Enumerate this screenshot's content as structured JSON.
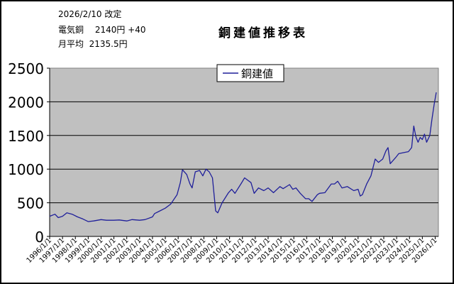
{
  "header": {
    "date_line": "2026/2/10 改定",
    "price_line": "電気銅　 2140円 +40",
    "avg_line": "月平均  2135.5円"
  },
  "chart_data": {
    "type": "line",
    "title": "銅建値推移表",
    "xlabel": "",
    "ylabel": "",
    "ylim": [
      0,
      2500
    ],
    "xlim": [
      "1996/1/1",
      "2026/4/1"
    ],
    "y_ticks": [
      "0",
      "500",
      "1000",
      "1500",
      "2000",
      "2500"
    ],
    "x_ticks": [
      "1996/1/1",
      "1997/1/1",
      "1998/1/1",
      "1999/1/1",
      "2000/1/1",
      "2001/1/1",
      "2002/1/1",
      "2003/1/1",
      "2004/1/1",
      "2005/1/1",
      "2006/1/1",
      "2007/1/1",
      "2008/1/1",
      "2009/1/1",
      "2010/1/1",
      "2011/1/1",
      "2012/1/1",
      "2013/1/1",
      "2014/1/1",
      "2015/1/1",
      "2016/1/1",
      "2017/1/1",
      "2018/1/1",
      "2019/1/1",
      "2020/1/1",
      "2021/1/1",
      "2022/1/1",
      "2023/1/1",
      "2024/1/1",
      "2025/1/1",
      "2026/1/1"
    ],
    "grid": true,
    "legend": "top-center",
    "plot_background": "#c0c0c0",
    "series": [
      {
        "name": "銅建値",
        "color": "#1f1f9a",
        "points": [
          [
            "1996/1/1",
            300
          ],
          [
            "1996/6/1",
            330
          ],
          [
            "1996/9/1",
            280
          ],
          [
            "1997/1/1",
            300
          ],
          [
            "1997/5/1",
            350
          ],
          [
            "1997/10/1",
            330
          ],
          [
            "1998/3/1",
            290
          ],
          [
            "1998/8/1",
            260
          ],
          [
            "1999/1/1",
            220
          ],
          [
            "1999/6/1",
            230
          ],
          [
            "2000/1/1",
            250
          ],
          [
            "2000/6/1",
            240
          ],
          [
            "2001/1/1",
            240
          ],
          [
            "2001/6/1",
            245
          ],
          [
            "2002/1/1",
            230
          ],
          [
            "2002/6/1",
            250
          ],
          [
            "2003/1/1",
            240
          ],
          [
            "2003/6/1",
            250
          ],
          [
            "2004/1/1",
            290
          ],
          [
            "2004/3/1",
            340
          ],
          [
            "2004/8/1",
            380
          ],
          [
            "2005/1/1",
            420
          ],
          [
            "2005/6/1",
            480
          ],
          [
            "2005/12/1",
            620
          ],
          [
            "2006/3/1",
            800
          ],
          [
            "2006/5/1",
            990
          ],
          [
            "2006/9/1",
            920
          ],
          [
            "2006/12/1",
            780
          ],
          [
            "2007/2/1",
            720
          ],
          [
            "2007/5/1",
            960
          ],
          [
            "2007/9/1",
            980
          ],
          [
            "2007/12/1",
            900
          ],
          [
            "2008/3/1",
            1000
          ],
          [
            "2008/6/1",
            960
          ],
          [
            "2008/9/1",
            870
          ],
          [
            "2008/12/1",
            380
          ],
          [
            "2009/2/1",
            350
          ],
          [
            "2009/6/1",
            500
          ],
          [
            "2009/12/1",
            650
          ],
          [
            "2010/3/1",
            700
          ],
          [
            "2010/6/1",
            640
          ],
          [
            "2010/12/1",
            790
          ],
          [
            "2011/3/1",
            870
          ],
          [
            "2011/9/1",
            800
          ],
          [
            "2011/12/1",
            640
          ],
          [
            "2012/4/1",
            720
          ],
          [
            "2012/9/1",
            680
          ],
          [
            "2013/1/1",
            720
          ],
          [
            "2013/6/1",
            650
          ],
          [
            "2013/12/1",
            740
          ],
          [
            "2014/3/1",
            710
          ],
          [
            "2014/9/1",
            770
          ],
          [
            "2014/12/1",
            700
          ],
          [
            "2015/3/1",
            720
          ],
          [
            "2015/7/1",
            640
          ],
          [
            "2015/12/1",
            560
          ],
          [
            "2016/3/1",
            560
          ],
          [
            "2016/6/1",
            520
          ],
          [
            "2016/11/1",
            620
          ],
          [
            "2017/1/1",
            640
          ],
          [
            "2017/6/1",
            650
          ],
          [
            "2017/12/1",
            780
          ],
          [
            "2018/3/1",
            780
          ],
          [
            "2018/6/1",
            820
          ],
          [
            "2018/10/1",
            720
          ],
          [
            "2019/3/1",
            740
          ],
          [
            "2019/9/1",
            680
          ],
          [
            "2020/1/1",
            700
          ],
          [
            "2020/3/1",
            600
          ],
          [
            "2020/5/1",
            620
          ],
          [
            "2020/9/1",
            780
          ],
          [
            "2021/1/1",
            900
          ],
          [
            "2021/5/1",
            1150
          ],
          [
            "2021/8/1",
            1100
          ],
          [
            "2021/12/1",
            1150
          ],
          [
            "2022/3/1",
            1270
          ],
          [
            "2022/5/1",
            1320
          ],
          [
            "2022/7/1",
            1080
          ],
          [
            "2022/12/1",
            1170
          ],
          [
            "2023/3/1",
            1230
          ],
          [
            "2023/9/1",
            1250
          ],
          [
            "2023/12/1",
            1260
          ],
          [
            "2024/3/1",
            1320
          ],
          [
            "2024/5/1",
            1640
          ],
          [
            "2024/7/1",
            1480
          ],
          [
            "2024/9/1",
            1400
          ],
          [
            "2024/11/1",
            1470
          ],
          [
            "2025/1/1",
            1440
          ],
          [
            "2025/3/1",
            1520
          ],
          [
            "2025/5/1",
            1400
          ],
          [
            "2025/8/1",
            1500
          ],
          [
            "2025/10/1",
            1740
          ],
          [
            "2025/12/1",
            1960
          ],
          [
            "2026/2/1",
            2140
          ]
        ]
      }
    ]
  }
}
